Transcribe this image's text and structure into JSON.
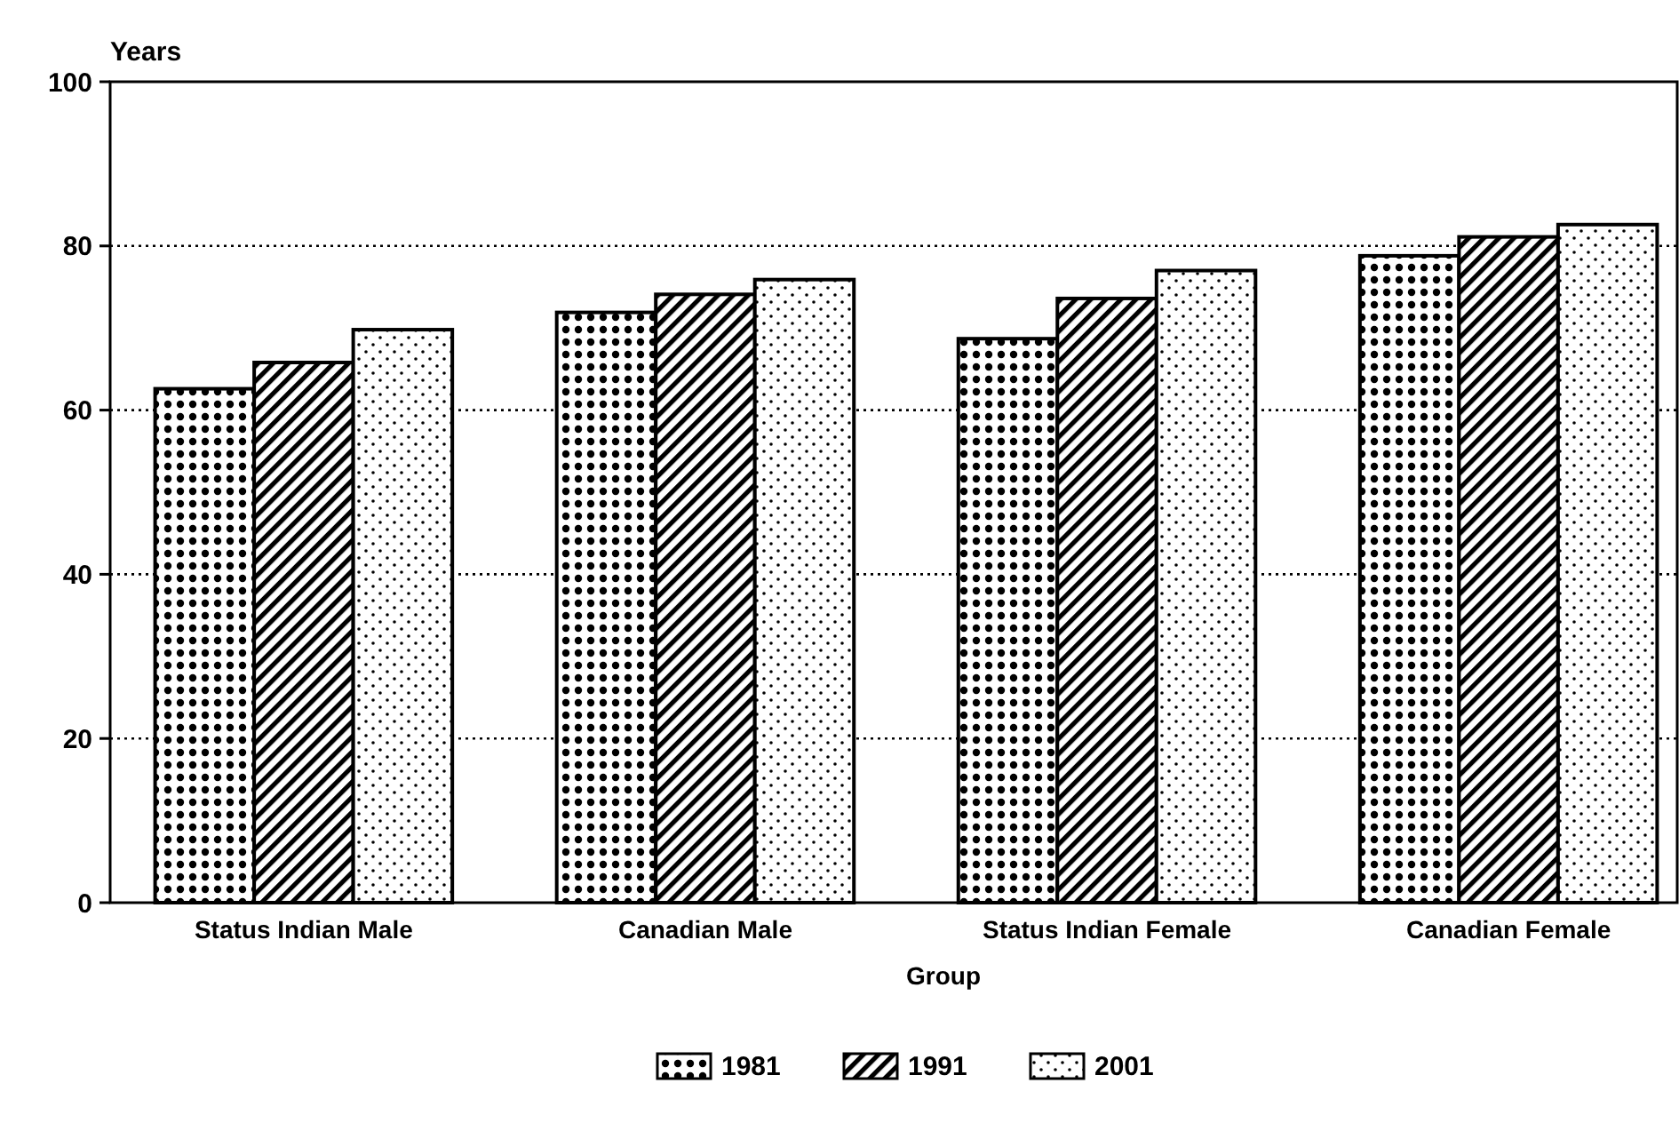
{
  "chart_data": {
    "type": "bar",
    "ylabel": "Years",
    "xlabel": "Group",
    "categories": [
      "Status Indian Male",
      "Canadian Male",
      "Status Indian Female",
      "Canadian Female"
    ],
    "series": [
      {
        "name": "1981",
        "color": "#000000",
        "values": [
          62.6,
          71.9,
          68.7,
          78.8
        ]
      },
      {
        "name": "1991",
        "color": "#000000",
        "values": [
          65.8,
          74.1,
          73.6,
          81.1
        ]
      },
      {
        "name": "2001",
        "color": "#000000",
        "values": [
          69.8,
          75.9,
          77.0,
          82.6
        ]
      }
    ],
    "ylim": [
      0,
      100
    ],
    "yticks": [
      0,
      20,
      40,
      60,
      80,
      100
    ],
    "grid": "y",
    "legend": "bottom"
  }
}
